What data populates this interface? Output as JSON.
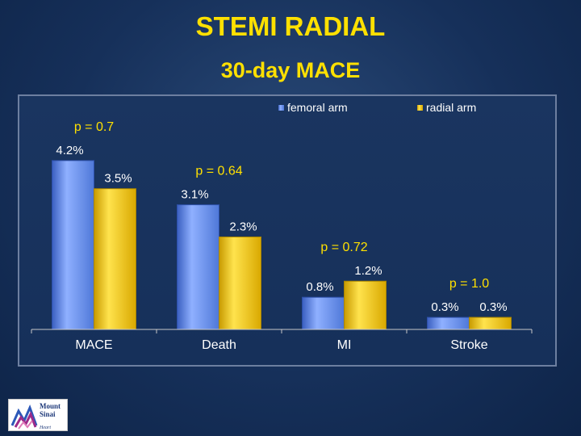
{
  "slide": {
    "title": "STEMI RADIAL",
    "subtitle": "30-day MACE"
  },
  "logo": {
    "line1": "Mount",
    "line2": "Sinai",
    "line3": "Heart"
  },
  "colors": {
    "femoral": "#5e86e6",
    "radial": "#f2c500",
    "text": "#ffe000",
    "axis_text": "#ffffff"
  },
  "chart_data": {
    "type": "bar",
    "title": "30-day MACE",
    "categories": [
      "MACE",
      "Death",
      "MI",
      "Stroke"
    ],
    "series": [
      {
        "name": "femoral arm",
        "values": [
          4.2,
          3.1,
          0.8,
          0.3
        ],
        "labels": [
          "4.2%",
          "3.1%",
          "0.8%",
          "0.3%"
        ]
      },
      {
        "name": "radial arm",
        "values": [
          3.5,
          2.3,
          1.2,
          0.3
        ],
        "labels": [
          "3.5%",
          "2.3%",
          "1.2%",
          "0.3%"
        ]
      }
    ],
    "annotations": [
      "p = 0.7",
      "p = 0.64",
      "p = 0.72",
      "p = 1.0"
    ],
    "ylim": [
      0,
      5
    ],
    "grid": false,
    "legend": "top-right"
  }
}
